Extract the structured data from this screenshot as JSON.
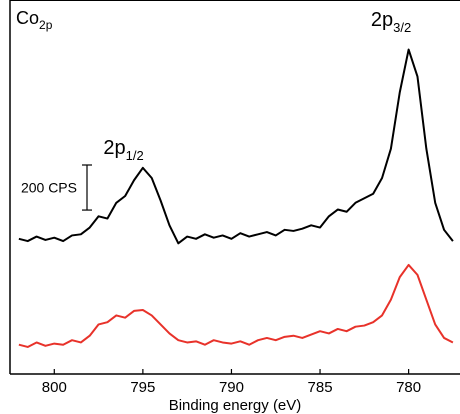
{
  "chart_data": {
    "type": "line",
    "title": {
      "main": "Co",
      "sub": "2p"
    },
    "x_label": "Binding energy (eV)",
    "x": [
      802,
      801.5,
      801,
      800.5,
      800,
      799.5,
      799,
      798.5,
      798,
      797.5,
      797,
      796.5,
      796,
      795.5,
      795,
      794.5,
      794,
      793.5,
      793,
      792.5,
      792,
      791.5,
      791,
      790.5,
      790,
      789.5,
      789,
      788.5,
      788,
      787.5,
      787,
      786.5,
      786,
      785.5,
      785,
      784.5,
      784,
      783.5,
      783,
      782.5,
      782,
      781.5,
      781,
      780.5,
      780,
      779.5,
      779,
      778.5,
      778,
      777.5
    ],
    "series": [
      {
        "color": "#000000",
        "values": [
          600,
          590,
          610,
          595,
          605,
          590,
          615,
          620,
          650,
          700,
          690,
          760,
          790,
          860,
          915,
          870,
          770,
          660,
          580,
          610,
          600,
          620,
          605,
          615,
          600,
          625,
          610,
          620,
          630,
          615,
          640,
          635,
          645,
          660,
          650,
          700,
          730,
          720,
          760,
          780,
          800,
          870,
          1000,
          1250,
          1440,
          1320,
          1000,
          760,
          640,
          590
        ]
      },
      {
        "color": "#e8322a",
        "values": [
          130,
          120,
          140,
          125,
          135,
          130,
          150,
          140,
          170,
          220,
          230,
          260,
          250,
          280,
          284,
          260,
          220,
          180,
          150,
          140,
          145,
          130,
          150,
          140,
          135,
          145,
          130,
          150,
          160,
          150,
          165,
          170,
          160,
          175,
          190,
          180,
          200,
          190,
          210,
          215,
          230,
          260,
          330,
          430,
          484,
          440,
          330,
          220,
          160,
          140
        ]
      }
    ],
    "annotations": [
      {
        "main": "2p",
        "sub": "3/2",
        "x": 780.2
      },
      {
        "main": "2p",
        "sub": "1/2",
        "x": 795.3
      }
    ],
    "scale_bar": {
      "label": "200 CPS",
      "value": 200
    },
    "xlim": [
      802.5,
      777.1
    ],
    "ylim": [
      0,
      1660
    ],
    "xticks": [
      800,
      795,
      790,
      785,
      780
    ]
  }
}
